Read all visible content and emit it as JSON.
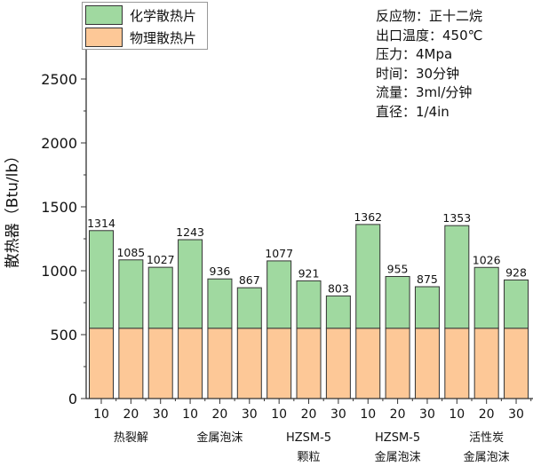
{
  "chart_data": {
    "type": "bar",
    "stacked": true,
    "ylabel": "散热器（Btu/lb）",
    "ylim": [
      0,
      2750
    ],
    "yticks": [
      0,
      500,
      1000,
      1500,
      2000,
      2500
    ],
    "grid": false,
    "legend_placement": "top-left",
    "x_tick_labels": [
      "10",
      "20",
      "30",
      "10",
      "20",
      "30",
      "10",
      "20",
      "30",
      "10",
      "20",
      "30",
      "10",
      "20",
      "30"
    ],
    "groups": [
      {
        "label": [
          "热裂解"
        ]
      },
      {
        "label": [
          "金属泡沫"
        ]
      },
      {
        "label": [
          "HZSM-5",
          "颗粒"
        ]
      },
      {
        "label": [
          "HZSM-5",
          "金属泡沫"
        ]
      },
      {
        "label": [
          "活性炭",
          "金属泡沫"
        ]
      }
    ],
    "totals": [
      1314,
      1085,
      1027,
      1243,
      936,
      867,
      1077,
      921,
      803,
      1362,
      955,
      875,
      1353,
      1026,
      928
    ],
    "series": [
      {
        "name": "物理散热片",
        "color": "#fdc897",
        "values": [
          550,
          550,
          550,
          550,
          550,
          550,
          550,
          550,
          550,
          550,
          550,
          550,
          550,
          550,
          550
        ]
      },
      {
        "name": "化学散热片",
        "color": "#a0d9a0",
        "values": [
          764,
          535,
          477,
          693,
          386,
          317,
          527,
          371,
          253,
          812,
          405,
          325,
          803,
          476,
          378
        ]
      }
    ]
  },
  "notes": [
    "反应物：正十二烷",
    "出口温度：450℃",
    "压力：4Mpa",
    "时间：30分钟",
    "流量：3ml/分钟",
    "直径：1/4in"
  ]
}
